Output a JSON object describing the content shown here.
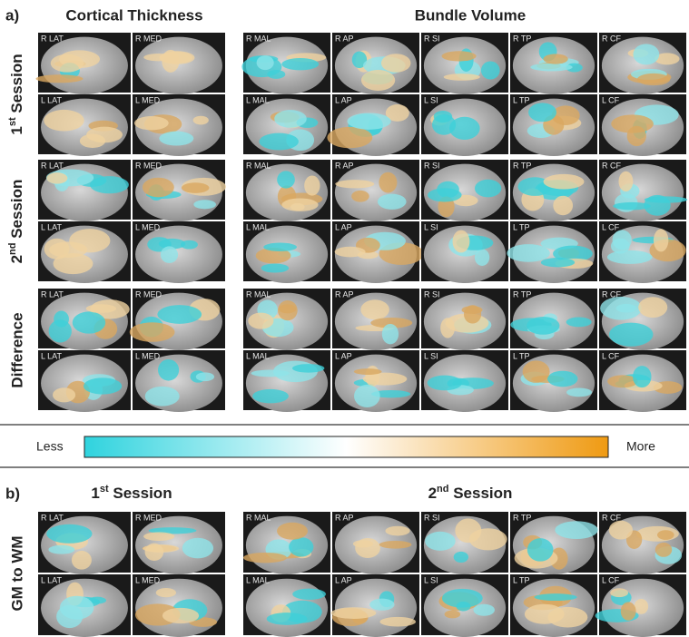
{
  "panel_a": {
    "label": "a)",
    "left_title": "Cortical Thickness",
    "right_title": "Bundle Volume",
    "rows": [
      {
        "num": "1",
        "sup": "st",
        "rest": " Session"
      },
      {
        "num": "2",
        "sup": "nd",
        "rest": " Session"
      },
      {
        "text": "Difference"
      }
    ]
  },
  "cortical_labels": [
    [
      "R LAT",
      "R MED"
    ],
    [
      "L LAT",
      "L MED"
    ]
  ],
  "bundle_labels": [
    [
      "R MAL",
      "R AP",
      "R SI",
      "R TP",
      "R CF"
    ],
    [
      "L MAL",
      "L AP",
      "L SI",
      "L TP",
      "L CF"
    ]
  ],
  "colorbar": {
    "low": "Less",
    "high": "More"
  },
  "panel_b": {
    "label": "b)",
    "left_title": {
      "num": "1",
      "sup": "st",
      "rest": " Session"
    },
    "right_title": {
      "num": "2",
      "sup": "nd",
      "rest": " Session"
    },
    "row_label": "GM to WM"
  }
}
